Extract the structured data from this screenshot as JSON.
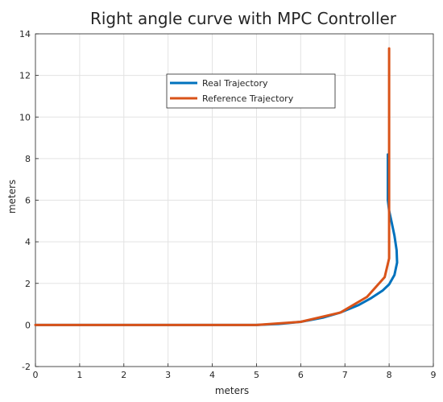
{
  "chart_data": {
    "type": "line",
    "title": "Right angle curve with MPC Controller",
    "xlabel": "meters",
    "ylabel": "meters",
    "xlim": [
      0,
      9
    ],
    "ylim": [
      -2,
      14
    ],
    "xticks": [
      "0",
      "1",
      "2",
      "3",
      "4",
      "5",
      "6",
      "7",
      "8",
      "9"
    ],
    "yticks": [
      "-2",
      "0",
      "2",
      "4",
      "6",
      "8",
      "10",
      "12",
      "14"
    ],
    "grid": true,
    "legend_position": "top-center",
    "series": [
      {
        "name": "Real Trajectory",
        "color": "#0072BD",
        "x": [
          0,
          5.0,
          5.5,
          6.0,
          6.5,
          6.9,
          7.3,
          7.6,
          7.85,
          8.0,
          8.12,
          8.18,
          8.17,
          8.12,
          8.05,
          8.0,
          7.97,
          7.97,
          7.97
        ],
        "y": [
          0,
          0,
          0.05,
          0.15,
          0.35,
          0.6,
          0.95,
          1.3,
          1.65,
          1.95,
          2.4,
          3.0,
          3.6,
          4.3,
          5.0,
          5.5,
          6.0,
          7.0,
          8.2
        ]
      },
      {
        "name": "Reference Trajectory",
        "color": "#D95319",
        "x": [
          0,
          5.0,
          6.0,
          6.9,
          7.5,
          7.9,
          8.0,
          8.0
        ],
        "y": [
          0,
          0,
          0.15,
          0.6,
          1.35,
          2.3,
          3.2,
          13.3
        ]
      }
    ]
  }
}
